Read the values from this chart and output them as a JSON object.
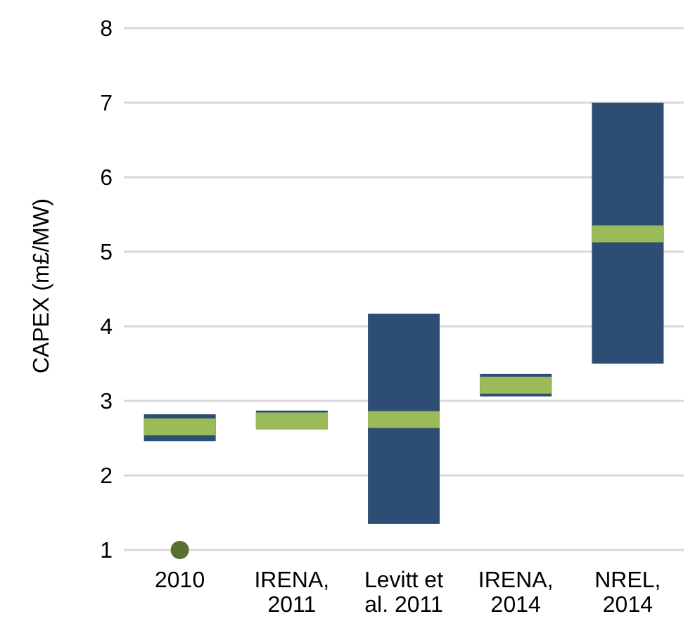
{
  "chart_data": {
    "type": "box",
    "ylabel": "CAPEX (m£/MW)",
    "categories": [
      "2010",
      "IRENA, 2011",
      "Levitt et al. 2011",
      "IRENA, 2014",
      "NREL, 2014"
    ],
    "series": [
      {
        "color": "#2e4d74",
        "boxes": [
          {
            "low": 2.46,
            "q1": 2.46,
            "median": 2.65,
            "q3": 2.82,
            "high": 2.82,
            "outliers": [
              1.0
            ]
          },
          {
            "low": 2.62,
            "q1": 2.62,
            "median": 2.73,
            "q3": 2.87,
            "high": 2.87
          },
          {
            "low": 1.35,
            "q1": 1.35,
            "median": 2.75,
            "q3": 4.17,
            "high": 4.17
          },
          {
            "low": 3.06,
            "q1": 3.06,
            "median": 3.21,
            "q3": 3.36,
            "high": 3.36
          },
          {
            "low": 3.5,
            "q1": 3.5,
            "median": 5.24,
            "q3": 7.0,
            "high": 7.0
          }
        ]
      }
    ],
    "ylim": [
      1,
      8
    ],
    "yticks": [
      1,
      2,
      3,
      4,
      5,
      6,
      7,
      8
    ],
    "grid": "y"
  }
}
